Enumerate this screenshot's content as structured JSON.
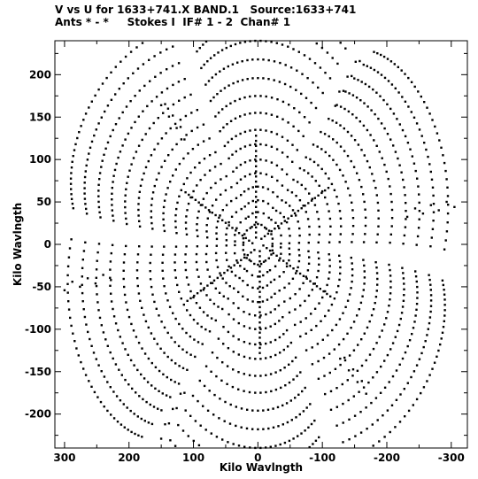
{
  "header": {
    "line1": "V vs U for 1633+741.X BAND.1   Source:1633+741",
    "line2": "Ants * - *     Stokes I  IF# 1 - 2  Chan# 1"
  },
  "chart_data": {
    "type": "scatter",
    "title": "V vs U for 1633+741.X BAND.1   Source:1633+741",
    "subtitle": "Ants * - *     Stokes I  IF# 1 - 2  Chan# 1",
    "xlabel": "Kilo Wavlngth",
    "ylabel": "Kilo Wavlngth",
    "xlim": [
      315,
      -325
    ],
    "ylim": [
      -240,
      240
    ],
    "x_ticks": [
      300,
      200,
      100,
      0,
      -100,
      -200,
      -300
    ],
    "y_ticks": [
      200,
      150,
      100,
      50,
      0,
      -50,
      -100,
      -150,
      -200
    ],
    "x_tick_labels": [
      "300",
      "200",
      "100",
      "0",
      "-100",
      "-200",
      "-300"
    ],
    "y_tick_labels": [
      "200",
      "150",
      "100",
      "50",
      "0",
      "-50",
      "-100",
      "-150",
      "-200"
    ],
    "grid": false,
    "marker_color": "#000000",
    "coverage": {
      "description_points": "uv-track arcs; each baseline traced at hour angles, with conjugate (-u,-v) points",
      "baselines": [
        {
          "rmax": 308,
          "a": 0.28
        },
        {
          "rmax": 285,
          "a": 0.24
        },
        {
          "rmax": 262,
          "a": 0.22
        },
        {
          "rmax": 240,
          "a": 0.2
        },
        {
          "rmax": 218,
          "a": 0.18
        },
        {
          "rmax": 196,
          "a": 0.17
        },
        {
          "rmax": 175,
          "a": 0.16
        },
        {
          "rmax": 155,
          "a": 0.15
        },
        {
          "rmax": 135,
          "a": 0.14
        },
        {
          "rmax": 118,
          "a": 0.14
        },
        {
          "rmax": 100,
          "a": 0.13
        },
        {
          "rmax": 84,
          "a": 0.13
        },
        {
          "rmax": 68,
          "a": 0.12
        },
        {
          "rmax": 52,
          "a": 0.12
        },
        {
          "rmax": 38,
          "a": 0.12
        },
        {
          "rmax": 24,
          "a": 0.12
        }
      ],
      "spokes_deg": [
        30,
        90,
        150
      ],
      "ha_ranges_deg": [
        [
          -62,
          -38
        ],
        [
          -12,
          12
        ],
        [
          38,
          62
        ],
        [
          -38,
          -34
        ],
        [
          34,
          38
        ]
      ]
    }
  }
}
